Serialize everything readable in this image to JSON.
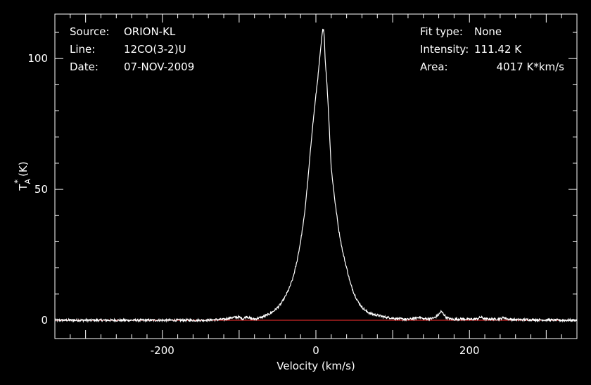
{
  "colors": {
    "background": "#000000",
    "foreground": "#ffffff",
    "baseline": "#ff3030"
  },
  "info_left": {
    "source_label": "Source:",
    "source_value": "ORION-KL",
    "line_label": "Line:",
    "line_value": "12CO(3-2)U",
    "date_label": "Date:",
    "date_value": "07-NOV-2009"
  },
  "info_right": {
    "fit_label": "Fit type:",
    "fit_value": "None",
    "intensity_label": "Intensity:",
    "intensity_value": "111.42 K",
    "area_label": "Area:",
    "area_value": "4017 K*km/s"
  },
  "chart_data": {
    "type": "line",
    "xlabel": "Velocity (km/s)",
    "ylabel": {
      "base": "T",
      "sub": "A",
      "sup": "*",
      "unit": "(K)"
    },
    "xlim": [
      -340,
      340
    ],
    "ylim": [
      -7,
      117
    ],
    "xticks": [
      -200,
      0,
      200
    ],
    "xtick_labels": [
      "-200",
      "0",
      "200"
    ],
    "yticks": [
      0,
      50,
      100
    ],
    "ytick_labels": [
      "0",
      "50",
      "100"
    ],
    "baseline_y": 0,
    "grid": false,
    "series": [
      {
        "x": [
          -340,
          -300,
          -250,
          -200,
          -150,
          -120,
          -110,
          -100,
          -95,
          -90,
          -85,
          -80,
          -75,
          -70,
          -65,
          -60,
          -55,
          -50,
          -45,
          -40,
          -35,
          -30,
          -25,
          -20,
          -15,
          -10,
          -5,
          0,
          3,
          5,
          7,
          8,
          9,
          10,
          11,
          12,
          14,
          16,
          18,
          20,
          25,
          30,
          35,
          40,
          45,
          50,
          55,
          60,
          65,
          70,
          75,
          80,
          90,
          100,
          110,
          120,
          130,
          135,
          140,
          150,
          155,
          160,
          163,
          166,
          170,
          175,
          180,
          190,
          200,
          210,
          215,
          220,
          230,
          240,
          245,
          250,
          260,
          280,
          300,
          320,
          340
        ],
        "y": [
          0,
          0,
          0,
          0,
          0,
          0.3,
          1,
          1.2,
          0.5,
          1.5,
          0.6,
          0.4,
          0.8,
          1.2,
          1.8,
          2.5,
          3.5,
          4.8,
          6.5,
          9,
          12,
          16,
          22,
          30,
          40,
          55,
          72,
          86,
          94,
          100,
          106,
          109,
          111,
          111.4,
          108,
          100,
          92,
          82,
          70,
          58,
          45,
          34,
          26,
          20,
          14,
          10,
          7,
          5,
          3.6,
          2.7,
          2.2,
          1.9,
          1.2,
          0.8,
          0.5,
          0.3,
          0.8,
          1.2,
          0.5,
          0.6,
          1,
          2.2,
          3.3,
          2.5,
          1,
          0.5,
          0.3,
          0.5,
          0.3,
          0.5,
          1.2,
          0.5,
          0.4,
          0.5,
          1.1,
          0.4,
          0.2,
          0.2,
          0.1,
          0,
          0
        ]
      }
    ]
  }
}
